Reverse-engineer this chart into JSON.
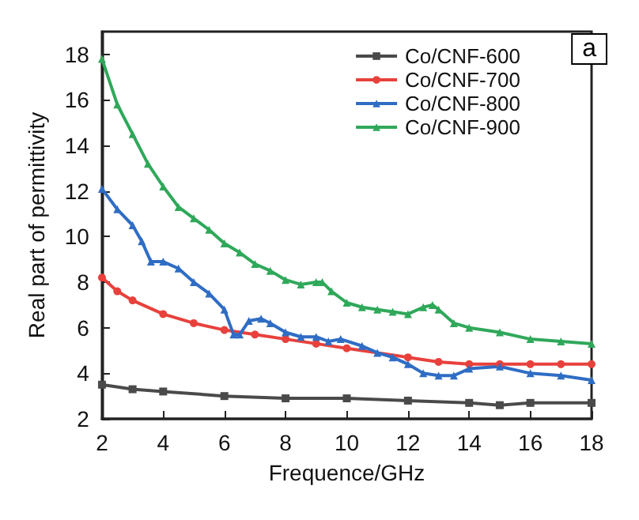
{
  "chart_data": {
    "type": "line",
    "xlabel": "Frequence/GHz",
    "ylabel": "Real part of permittivity",
    "annotations": [
      "a"
    ],
    "xlim": [
      2,
      18
    ],
    "xticks": [
      2,
      4,
      6,
      8,
      10,
      12,
      14,
      16,
      18
    ],
    "ylim": [
      2,
      19
    ],
    "yticks": [
      2,
      4,
      6,
      8,
      10,
      12,
      14,
      16,
      18
    ],
    "grid": false,
    "legend": "top right",
    "line_style": "solid",
    "series": [
      {
        "name": "Co/CNF-600",
        "color": "#4a4a4a",
        "marker": "square",
        "x": [
          2,
          3,
          4,
          6,
          8,
          10,
          12,
          14,
          15,
          16,
          18
        ],
        "values": [
          3.5,
          3.3,
          3.2,
          3.0,
          2.9,
          2.9,
          2.8,
          2.7,
          2.6,
          2.7,
          2.7
        ]
      },
      {
        "name": "Co/CNF-700",
        "color": "#e8413c",
        "marker": "circle",
        "x": [
          2,
          2.5,
          3,
          4,
          5,
          6,
          7,
          8,
          9,
          10,
          12,
          13,
          14,
          15,
          16,
          17,
          18
        ],
        "values": [
          8.2,
          7.6,
          7.2,
          6.6,
          6.2,
          5.9,
          5.7,
          5.5,
          5.3,
          5.1,
          4.7,
          4.5,
          4.4,
          4.4,
          4.4,
          4.4,
          4.4
        ]
      },
      {
        "name": "Co/CNF-800",
        "color": "#2f6dc4",
        "marker": "triangle",
        "x": [
          2,
          2.5,
          3,
          3.3,
          3.6,
          4,
          4.5,
          5,
          5.5,
          6,
          6.3,
          6.5,
          6.8,
          7.2,
          7.5,
          8,
          8.5,
          9,
          9.4,
          9.8,
          10.5,
          11,
          11.5,
          12,
          12.5,
          13,
          13.5,
          14,
          15,
          16,
          17,
          18
        ],
        "values": [
          12.1,
          11.2,
          10.5,
          9.8,
          8.9,
          8.9,
          8.6,
          8.0,
          7.5,
          6.8,
          5.7,
          5.7,
          6.3,
          6.4,
          6.2,
          5.8,
          5.6,
          5.6,
          5.4,
          5.5,
          5.2,
          4.9,
          4.7,
          4.4,
          4.0,
          3.9,
          3.9,
          4.2,
          4.3,
          4.0,
          3.9,
          3.7
        ]
      },
      {
        "name": "Co/CNF-900",
        "color": "#2fa85a",
        "marker": "triangle",
        "x": [
          2,
          2.5,
          3,
          3.5,
          4,
          4.5,
          5,
          5.5,
          6,
          6.5,
          7,
          7.5,
          8,
          8.5,
          9,
          9.2,
          9.5,
          10,
          10.5,
          11,
          11.5,
          12,
          12.5,
          12.8,
          13,
          13.5,
          14,
          15,
          16,
          17,
          18
        ],
        "values": [
          17.8,
          15.8,
          14.5,
          13.2,
          12.2,
          11.3,
          10.8,
          10.3,
          9.7,
          9.3,
          8.8,
          8.5,
          8.1,
          7.9,
          8.0,
          8.0,
          7.6,
          7.1,
          6.9,
          6.8,
          6.7,
          6.6,
          6.9,
          7.0,
          6.8,
          6.2,
          6.0,
          5.8,
          5.5,
          5.4,
          5.3
        ]
      }
    ]
  }
}
